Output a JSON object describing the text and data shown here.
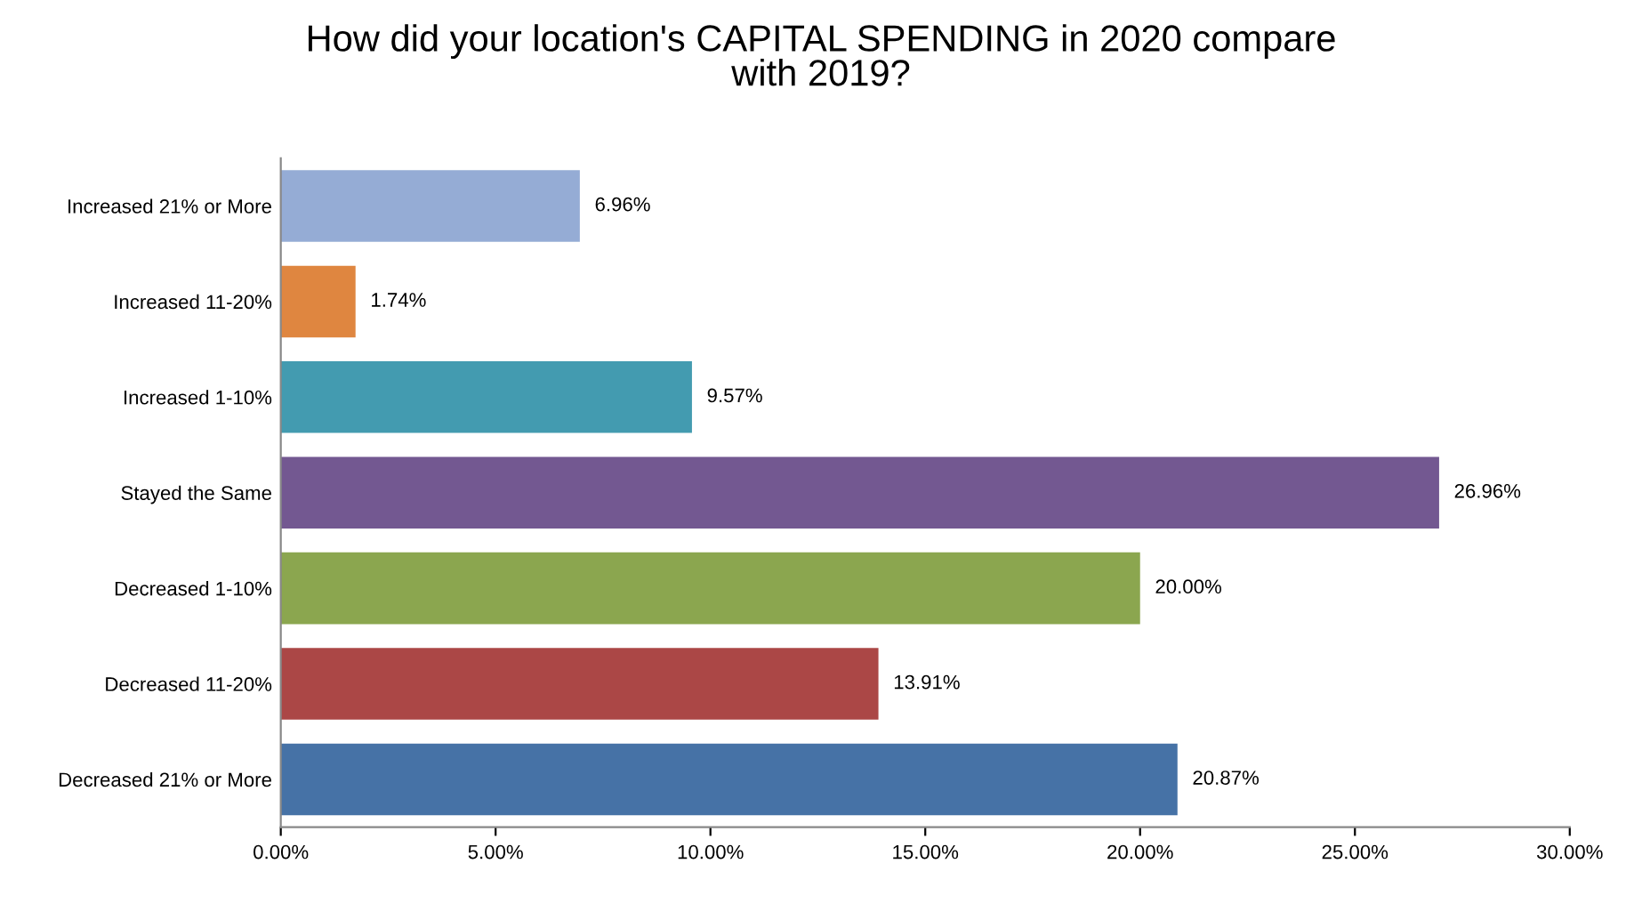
{
  "chart_data": {
    "type": "bar",
    "orientation": "horizontal",
    "title": "How did your location's CAPITAL SPENDING in 2020 compare\nwith 2019?",
    "categories": [
      "Increased 21% or More",
      "Increased 11-20%",
      "Increased 1-10%",
      "Stayed the Same",
      "Decreased 1-10%",
      "Decreased 11-20%",
      "Decreased 21% or More"
    ],
    "values": [
      6.96,
      1.74,
      9.57,
      26.96,
      20.0,
      13.91,
      20.87
    ],
    "colors": [
      "#95acd5",
      "#df8640",
      "#439bb0",
      "#735891",
      "#8ba64f",
      "#ab4746",
      "#4672a6"
    ],
    "value_labels": [
      "6.96%",
      "1.74%",
      "9.57%",
      "26.96%",
      "20.00%",
      "13.91%",
      "20.87%"
    ],
    "xlim": [
      0,
      30
    ],
    "xticks": [
      {
        "value": 0,
        "label": "0.00%"
      },
      {
        "value": 5,
        "label": "5.00%"
      },
      {
        "value": 10,
        "label": "10.00%"
      },
      {
        "value": 15,
        "label": "15.00%"
      },
      {
        "value": 20,
        "label": "20.00%"
      },
      {
        "value": 25,
        "label": "25.00%"
      },
      {
        "value": 30,
        "label": "30.00%"
      }
    ],
    "grid": false
  }
}
